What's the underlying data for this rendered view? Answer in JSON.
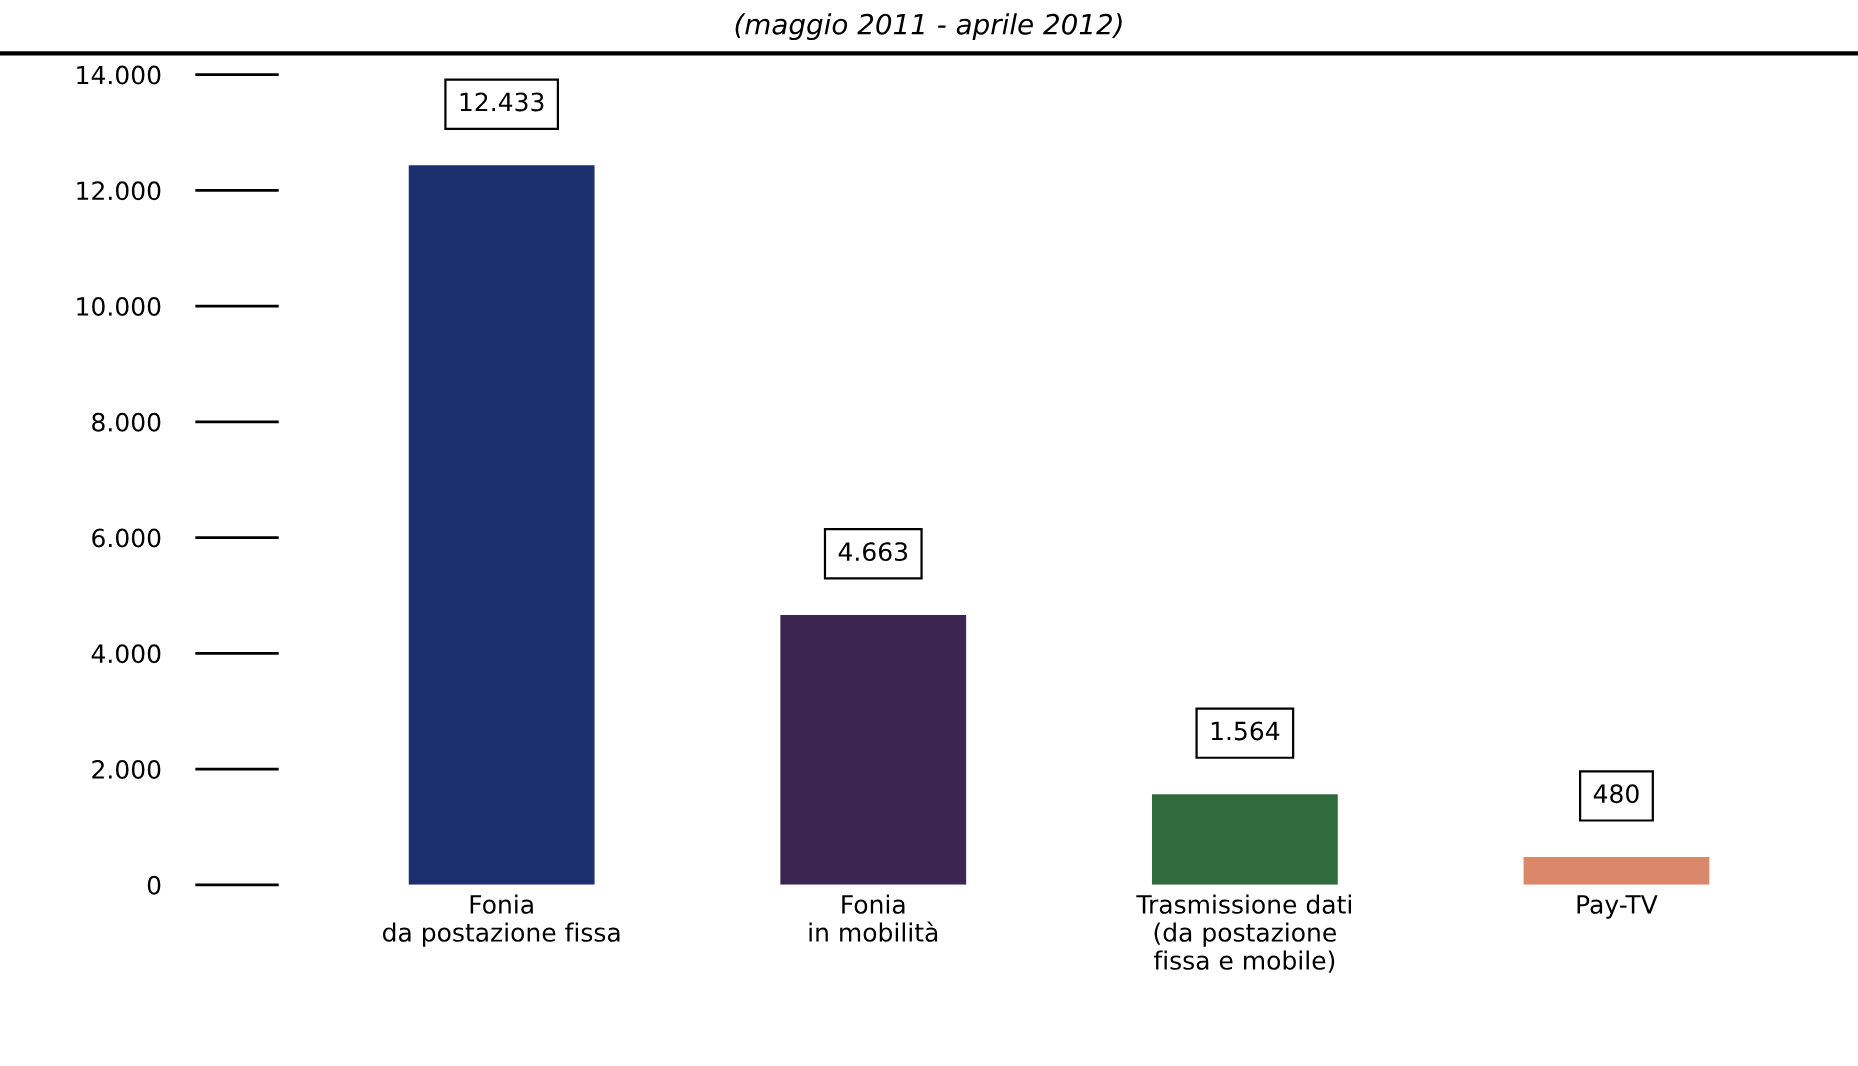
{
  "chart_data": {
    "type": "bar",
    "subtitle": "(maggio 2011 - aprile 2012)",
    "categories": [
      "Fonia\nda postazione fissa",
      "Fonia\nin mobilità",
      "Trasmissione dati\n(da postazione\nfissa e mobile)",
      "Pay-TV"
    ],
    "values": [
      12433,
      4663,
      1564,
      480
    ],
    "colors": [
      "#1c2f6e",
      "#3d2552",
      "#2f6b3c",
      "#d9896a"
    ],
    "value_labels": [
      "12.433",
      "4.663",
      "1.564",
      "480"
    ],
    "ylim": [
      0,
      14000
    ],
    "yticks": [
      {
        "value": 0,
        "label": "0"
      },
      {
        "value": 2000,
        "label": "2.000"
      },
      {
        "value": 4000,
        "label": "4.000"
      },
      {
        "value": 6000,
        "label": "6.000"
      },
      {
        "value": 8000,
        "label": "8.000"
      },
      {
        "value": 10000,
        "label": "10.000"
      },
      {
        "value": 12000,
        "label": "12.000"
      },
      {
        "value": 14000,
        "label": "14.000"
      }
    ],
    "grid": false,
    "legend": false
  }
}
